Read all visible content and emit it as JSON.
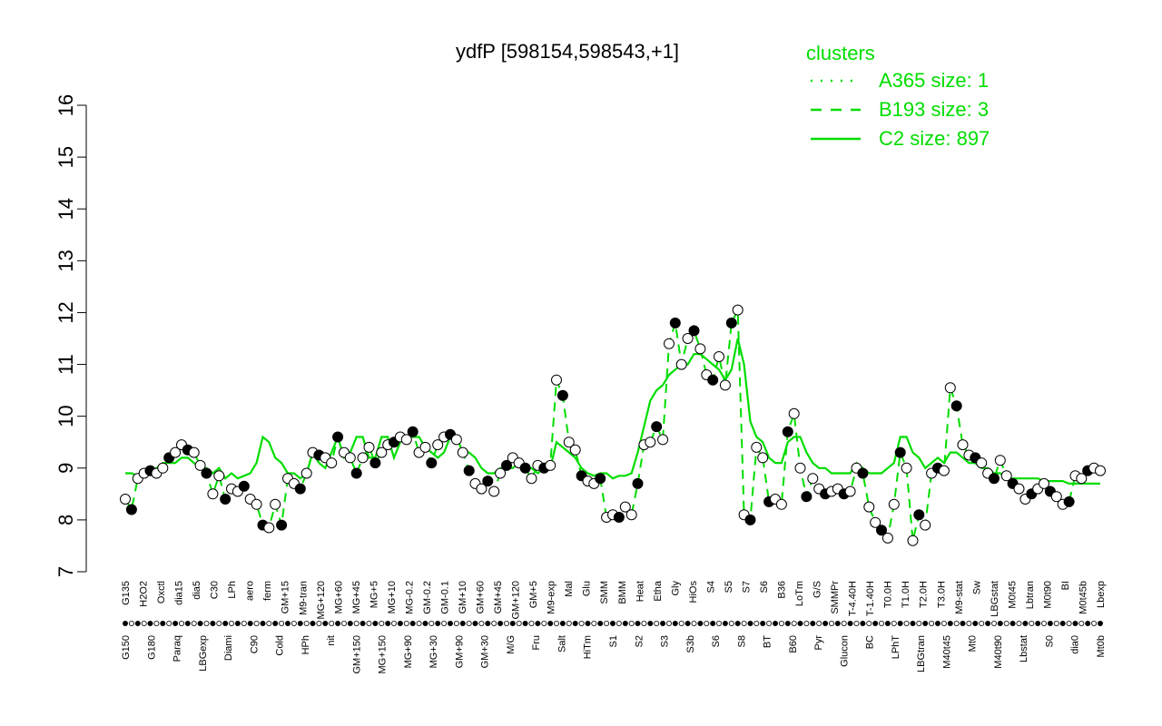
{
  "chart_data": {
    "type": "line",
    "title": "ydfP [598154,598543,+1]",
    "xlabel": "",
    "ylabel": "",
    "ylim": [
      7,
      16
    ],
    "yticks": [
      7,
      8,
      9,
      10,
      11,
      12,
      13,
      14,
      15,
      16
    ],
    "grid": false,
    "legend": {
      "title": "clusters",
      "placement": "top-right",
      "color": "#00dd00",
      "entries": [
        {
          "label": "A365 size: 1",
          "style": "dotted"
        },
        {
          "label": "B193 size: 3",
          "style": "dashed"
        },
        {
          "label": "C2 size: 897",
          "style": "solid"
        }
      ]
    },
    "colors": {
      "line": "#00dd00",
      "point_fill": "#ffffff",
      "point_fill_dark": "#000000",
      "axis": "#000000"
    },
    "tick_labels_top": [
      "G135",
      "H2O2",
      "Oxctl",
      "dia15",
      "dia5",
      "C30",
      "LPh",
      "aero",
      "ferm",
      "GM+15",
      "M9-tran",
      "MG+120",
      "MG+60",
      "MG+45",
      "MG+5",
      "MG+10",
      "MG-0.2",
      "GM-0.2",
      "GM-0.1",
      "GM+10",
      "GM+60",
      "GM+45",
      "GM+120",
      "GM+5",
      "M9-exp",
      "Mal",
      "Glu",
      "SMM",
      "BMM",
      "Heat",
      "Etha",
      "Gly",
      "HiOs",
      "S4",
      "S5",
      "S7",
      "S6",
      "B36",
      "LoTm",
      "G/S",
      "SMMPr",
      "T-4.40H",
      "T-1.40H",
      "T0.0H",
      "T1.0H",
      "T2.0H",
      "T3.0H",
      "M9-stat",
      "Sw",
      "LBGstat",
      "M0t45",
      "Lbtran",
      "M0t90",
      "BI",
      "M0t45b",
      "Lbexp"
    ],
    "tick_labels_bottom": [
      "G150",
      "G180",
      "Paraq",
      "LBGexp",
      "Diami",
      "C90",
      "Cold",
      "HPh",
      "nit",
      "GM+150",
      "MG+150",
      "MG+90",
      "MG+30",
      "GM+90",
      "GM+30",
      "M/G",
      "Fru",
      "Salt",
      "HiTm",
      "S1",
      "S2",
      "S3",
      "S3b",
      "S6",
      "S8",
      "BT",
      "B60",
      "Pyr",
      "Glucon",
      "BC",
      "LPhT",
      "LBGtran",
      "M40t45",
      "Mt0",
      "M40t90",
      "Lbstat",
      "S0",
      "dia0",
      "Mt0b"
    ],
    "series": [
      {
        "name": "",
        "values": [
          8.4,
          8.2,
          8.8,
          8.9,
          8.95,
          8.9,
          9.0,
          9.2,
          9.3,
          9.45,
          9.35,
          9.3,
          9.05,
          8.9,
          8.5,
          8.85,
          8.4,
          8.6,
          8.55,
          8.65,
          8.4,
          8.3,
          7.9,
          7.85,
          8.3,
          7.9,
          8.8,
          8.7,
          8.6,
          8.9,
          9.3,
          9.25,
          9.2,
          9.1,
          9.6,
          9.3,
          9.2,
          8.9,
          9.2,
          9.4,
          9.1,
          9.3,
          9.45,
          9.5,
          9.6,
          9.55,
          9.7,
          9.3,
          9.4,
          9.1,
          9.45,
          9.6,
          9.65,
          9.55,
          9.3,
          8.95,
          8.7,
          8.6,
          8.75,
          8.55,
          8.9,
          9.05,
          9.2,
          9.1,
          9.0,
          8.8,
          9.05,
          9.0,
          9.05,
          10.7,
          10.4,
          9.5,
          9.35,
          8.85,
          8.75,
          8.7,
          8.8,
          8.05,
          8.1,
          8.05,
          8.25,
          8.1,
          8.7,
          9.45,
          9.5,
          9.8,
          9.55,
          11.4,
          11.8,
          11.0,
          11.5,
          11.65,
          11.3,
          10.8,
          10.7,
          11.15,
          10.6,
          11.8,
          12.05,
          8.1,
          8.0,
          9.4,
          9.2,
          8.35,
          8.4,
          8.3,
          9.7,
          10.05,
          9.0,
          8.45,
          8.8,
          8.6,
          8.5,
          8.55,
          8.6,
          8.5,
          8.55,
          9.0,
          8.9,
          8.25,
          7.95,
          7.8,
          7.65,
          8.3,
          9.3,
          9.0,
          7.6,
          8.1,
          7.9,
          8.9,
          9.0,
          8.95,
          10.55,
          10.2,
          9.45,
          9.25,
          9.2,
          9.1,
          8.9,
          8.8,
          9.15,
          8.85,
          8.7,
          8.6,
          8.4,
          8.5,
          8.6,
          8.7,
          8.55,
          8.45,
          8.3,
          8.35,
          8.85,
          8.8,
          8.95,
          9.0,
          8.95
        ]
      },
      {
        "name": "",
        "values": [
          8.9,
          8.9,
          8.85,
          8.9,
          8.9,
          9.0,
          9.1,
          9.1,
          9.1,
          9.2,
          9.2,
          9.1,
          9.0,
          9.0,
          8.9,
          9.0,
          8.8,
          8.9,
          8.8,
          8.85,
          8.9,
          9.1,
          9.6,
          9.5,
          9.2,
          9.1,
          8.9,
          8.9,
          8.8,
          8.9,
          9.3,
          9.1,
          9.0,
          9.3,
          9.6,
          9.2,
          9.3,
          9.6,
          9.6,
          9.2,
          9.2,
          9.6,
          9.6,
          9.2,
          9.5,
          9.6,
          9.6,
          9.6,
          9.4,
          9.3,
          9.2,
          9.3,
          9.6,
          9.6,
          9.3,
          9.3,
          9.2,
          9.0,
          8.9,
          8.9,
          9.0,
          9.0,
          9.0,
          9.1,
          9.0,
          9.0,
          8.9,
          9.0,
          9.0,
          9.5,
          9.4,
          9.3,
          9.2,
          9.0,
          8.9,
          8.85,
          8.9,
          8.9,
          8.8,
          8.85,
          8.85,
          8.9,
          9.3,
          9.8,
          10.3,
          10.5,
          10.6,
          10.8,
          10.9,
          11.0,
          11.0,
          11.2,
          11.2,
          11.1,
          11.0,
          10.9,
          10.7,
          10.9,
          11.5,
          11.0,
          9.9,
          9.6,
          9.5,
          9.2,
          9.1,
          9.1,
          9.5,
          9.6,
          9.6,
          9.3,
          9.1,
          9.0,
          9.0,
          8.9,
          8.9,
          8.9,
          8.9,
          9.1,
          9.0,
          8.9,
          8.9,
          8.9,
          9.0,
          9.1,
          9.6,
          9.6,
          9.3,
          9.2,
          9.0,
          9.1,
          9.2,
          9.1,
          9.3,
          9.3,
          9.2,
          9.1,
          9.1,
          9.0,
          9.0,
          8.9,
          8.9,
          8.8,
          8.8,
          8.8,
          8.8,
          8.8,
          8.8,
          8.75,
          8.75,
          8.75,
          8.75,
          8.7,
          8.7,
          8.7,
          8.7,
          8.7,
          8.7
        ]
      }
    ]
  }
}
